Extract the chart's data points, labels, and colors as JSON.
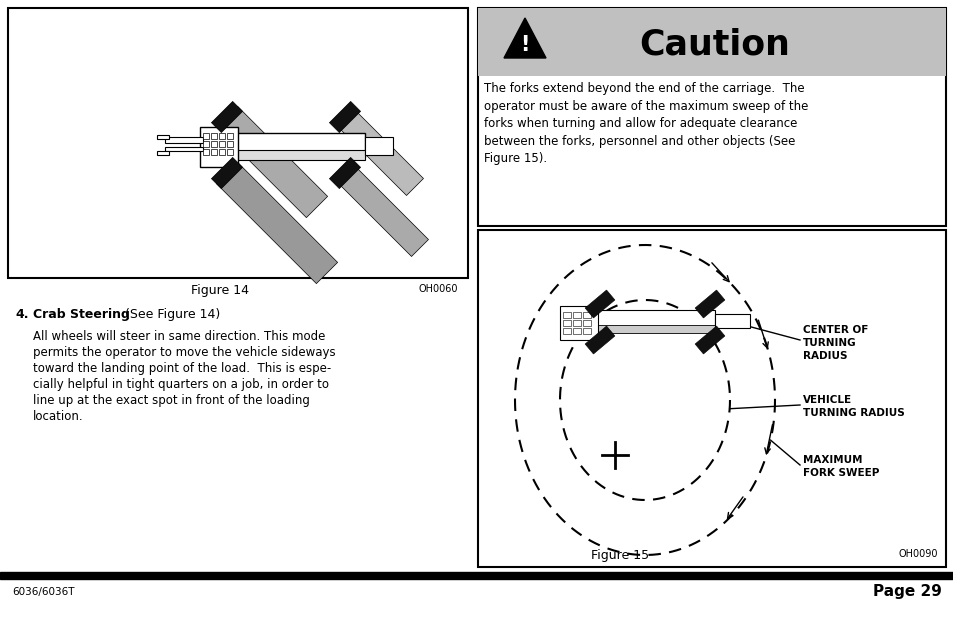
{
  "bg_color": "#ffffff",
  "footer_text_left": "6036/6036T",
  "footer_text_right": "Page 29",
  "caution_title": "Caution",
  "caution_header_bg": "#c0c0c0",
  "caution_body": "The forks extend beyond the end of the carriage.  The\noperator must be aware of the maximum sweep of the\nforks when turning and allow for adequate clearance\nbetween the forks, personnel and other objects (See\nFigure 15).",
  "section_num": "4.",
  "section_title": "Crab Steering",
  "section_title_suffix": " (See Figure 14)",
  "section_body": "All wheels will steer in same direction. This mode\npermits the operator to move the vehicle sideways\ntoward the landing point of the load.  This is espe-\ncially helpful in tight quarters on a job, in order to\nline up at the exact spot in front of the loading\nlocation.",
  "fig14_label": "Figure 14",
  "fig14_code": "OH0060",
  "fig15_label": "Figure 15",
  "fig15_code": "OH0090",
  "label_center": "CENTER OF\nTURNING\nRADIUS",
  "label_vehicle": "VEHICLE\nTURNING RADIUS",
  "label_fork": "MAXIMUM\nFORK SWEEP"
}
